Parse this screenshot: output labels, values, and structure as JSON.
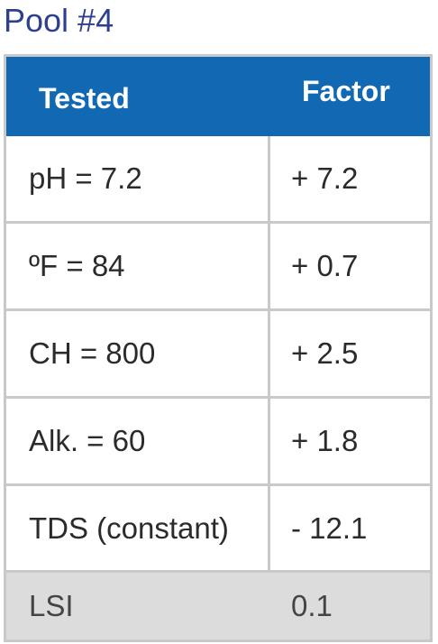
{
  "title": "Pool #4",
  "table": {
    "headers": {
      "tested": "Tested",
      "factor": "Factor"
    },
    "rows": [
      {
        "tested": "pH = 7.2",
        "factor": "+ 7.2"
      },
      {
        "tested": "ºF = 84",
        "factor": "+ 0.7"
      },
      {
        "tested": "CH = 800",
        "factor": "+ 2.5"
      },
      {
        "tested": "Alk. = 60",
        "factor": "+ 1.8"
      },
      {
        "tested": "TDS (constant)",
        "factor": "- 12.1"
      },
      {
        "tested": "LSI",
        "factor": "0.1"
      }
    ]
  },
  "colors": {
    "title": "#2e3f8f",
    "header_bg": "#1269b3",
    "header_text": "#ffffff",
    "grid": "#c9c9c9",
    "summary_row_bg": "#dcdcdc"
  }
}
